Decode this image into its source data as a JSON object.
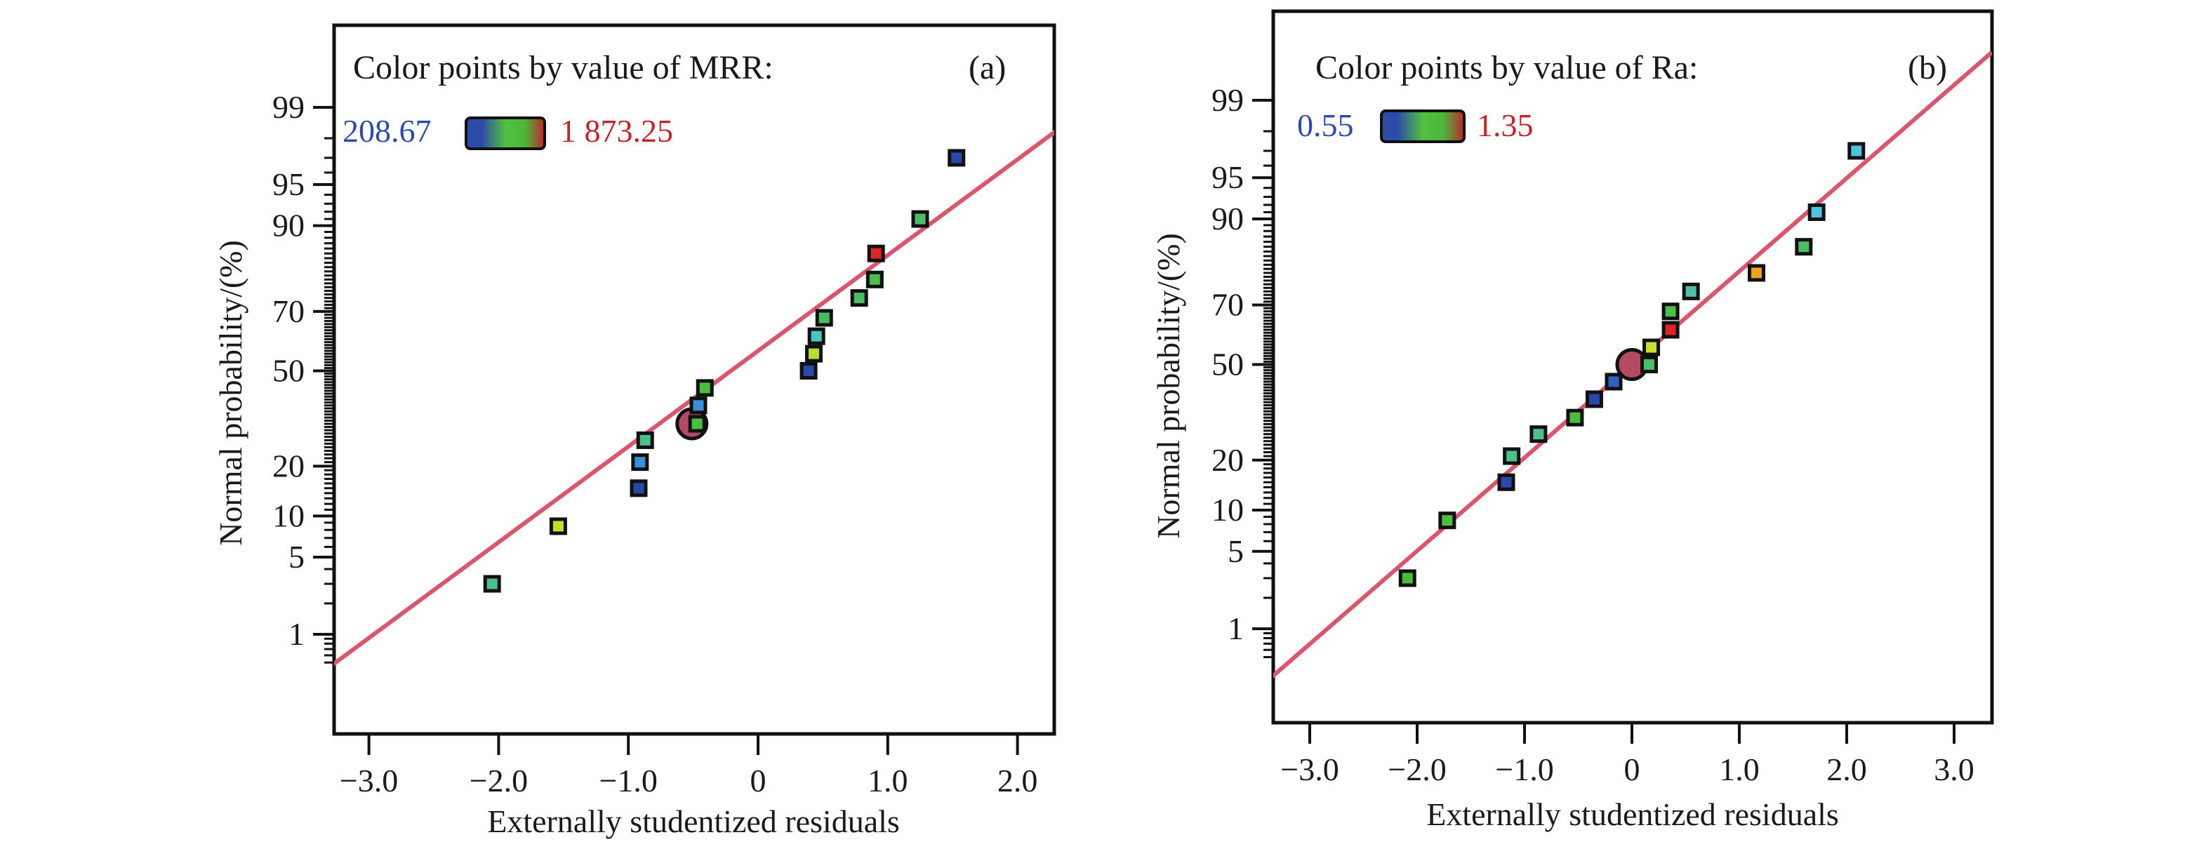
{
  "chart_data": [
    {
      "type": "scatter",
      "panel_label": "(a)",
      "title": "",
      "xlabel": "Externally studentized residuals",
      "ylabel": "Normal probability/(%)",
      "y_scale": "normal-probability",
      "xlim": [
        -3.3,
        2.3
      ],
      "x_ticks": [
        -3.0,
        -2.0,
        -1.0,
        0,
        1.0,
        2.0
      ],
      "x_tick_labels": [
        "−3.0",
        "−2.0",
        "−1.0",
        "0",
        "1.0",
        "2.0"
      ],
      "y_ticks": [
        1,
        5,
        10,
        20,
        50,
        70,
        90,
        95,
        99
      ],
      "y_tick_labels": [
        "1",
        "5",
        "10",
        "20",
        "50",
        "70",
        "90",
        "95",
        "99"
      ],
      "legend": {
        "title": "Color points by value of MRR:",
        "min_label": "208.67",
        "max_label": "1 873.25",
        "min_color": "#2e4aa8",
        "max_color": "#c0242c",
        "placement": "top-left"
      },
      "fit_line": {
        "color": "#d9566f",
        "x": [
          -3.3,
          2.3
        ],
        "y": [
          0.45,
          98.3
        ]
      },
      "highlight_point": {
        "x": -0.51,
        "y": 32,
        "color": "#b54a63"
      },
      "points": [
        {
          "x": -2.05,
          "y": 3,
          "color": "#4cc08a"
        },
        {
          "x": -1.54,
          "y": 8.5,
          "color": "#c2df2e"
        },
        {
          "x": -0.92,
          "y": 15,
          "color": "#2a48a8"
        },
        {
          "x": -0.91,
          "y": 21,
          "color": "#3a8fd8"
        },
        {
          "x": -0.87,
          "y": 27,
          "color": "#4cc08a"
        },
        {
          "x": -0.47,
          "y": 32,
          "color": "#4cbc3e"
        },
        {
          "x": -0.46,
          "y": 38,
          "color": "#3a8fd8"
        },
        {
          "x": -0.41,
          "y": 44,
          "color": "#4cbc3e"
        },
        {
          "x": 0.39,
          "y": 50,
          "color": "#2a48a8"
        },
        {
          "x": 0.43,
          "y": 56,
          "color": "#b6df2e"
        },
        {
          "x": 0.45,
          "y": 62,
          "color": "#4cc4c4"
        },
        {
          "x": 0.51,
          "y": 68,
          "color": "#4cbc5a"
        },
        {
          "x": 0.78,
          "y": 74,
          "color": "#4cbc66"
        },
        {
          "x": 0.9,
          "y": 79,
          "color": "#4cbc4a"
        },
        {
          "x": 0.91,
          "y": 85,
          "color": "#e02424"
        },
        {
          "x": 1.25,
          "y": 91,
          "color": "#4cbc66"
        },
        {
          "x": 1.53,
          "y": 97,
          "color": "#2a48a8"
        }
      ]
    },
    {
      "type": "scatter",
      "panel_label": "(b)",
      "title": "",
      "xlabel": "Externally studentized residuals",
      "ylabel": "Normal probability/(%)",
      "y_scale": "normal-probability",
      "xlim": [
        -3.35,
        3.35
      ],
      "x_ticks": [
        -3.0,
        -2.0,
        -1.0,
        0,
        1.0,
        2.0,
        3.0
      ],
      "x_tick_labels": [
        "−3.0",
        "−2.0",
        "−1.0",
        "0",
        "1.0",
        "2.0",
        "3.0"
      ],
      "y_ticks": [
        1,
        5,
        10,
        20,
        50,
        70,
        90,
        95,
        99
      ],
      "y_tick_labels": [
        "1",
        "5",
        "10",
        "20",
        "50",
        "70",
        "90",
        "95",
        "99"
      ],
      "legend": {
        "title": "Color points by value of Ra:",
        "min_label": "0.55",
        "max_label": "1.35",
        "min_color": "#2e4aa8",
        "max_color": "#c0242c",
        "placement": "top-left"
      },
      "fit_line": {
        "color": "#d9566f",
        "x": [
          -3.35,
          3.35
        ],
        "y": [
          0.3,
          99.7
        ]
      },
      "highlight_point": {
        "x": 0.0,
        "y": 50,
        "color": "#b54a63"
      },
      "points": [
        {
          "x": -2.09,
          "y": 3,
          "color": "#4cbc3e"
        },
        {
          "x": -1.72,
          "y": 8.5,
          "color": "#4cbc3e"
        },
        {
          "x": -1.17,
          "y": 15,
          "color": "#2a48a8"
        },
        {
          "x": -1.12,
          "y": 21,
          "color": "#4cc08a"
        },
        {
          "x": -0.87,
          "y": 27,
          "color": "#4cc08a"
        },
        {
          "x": -0.53,
          "y": 32,
          "color": "#4cbc3e"
        },
        {
          "x": -0.35,
          "y": 38,
          "color": "#2a48a8"
        },
        {
          "x": -0.17,
          "y": 44,
          "color": "#3060c0"
        },
        {
          "x": 0.16,
          "y": 50,
          "color": "#4cbc66"
        },
        {
          "x": 0.18,
          "y": 56,
          "color": "#c8df2e"
        },
        {
          "x": 0.36,
          "y": 62,
          "color": "#e02424"
        },
        {
          "x": 0.36,
          "y": 68,
          "color": "#4cbc4a"
        },
        {
          "x": 0.55,
          "y": 74,
          "color": "#4cc0a8"
        },
        {
          "x": 1.16,
          "y": 79,
          "color": "#f0a020"
        },
        {
          "x": 1.6,
          "y": 85,
          "color": "#4cbc66"
        },
        {
          "x": 1.72,
          "y": 91,
          "color": "#4cc4e0"
        },
        {
          "x": 2.09,
          "y": 97,
          "color": "#4cc4e0"
        }
      ]
    }
  ]
}
